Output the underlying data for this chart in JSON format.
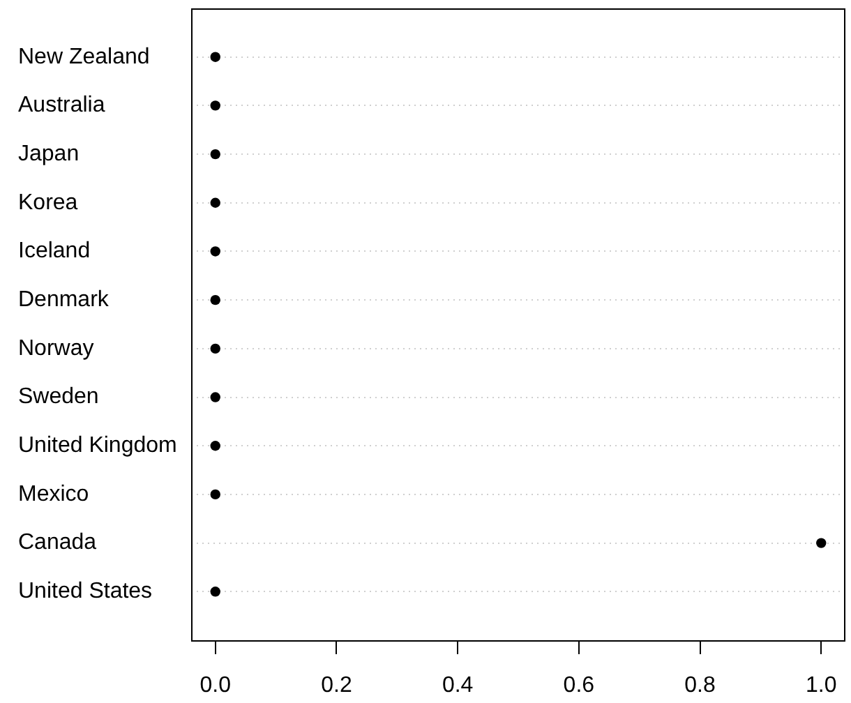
{
  "chart_data": {
    "type": "scatter",
    "orientation": "horizontal",
    "categories": [
      "New Zealand",
      "Australia",
      "Japan",
      "Korea",
      "Iceland",
      "Denmark",
      "Norway",
      "Sweden",
      "United Kingdom",
      "Mexico",
      "Canada",
      "United States"
    ],
    "values": [
      0,
      0,
      0,
      0,
      0,
      0,
      0,
      0,
      0,
      0,
      1,
      0
    ],
    "color": "#000000",
    "marker": "circle",
    "grid": "y",
    "xlim": [
      -0.04,
      1.04
    ],
    "xticks": [
      {
        "value": 0,
        "label": "0.0"
      },
      0.2,
      0.4,
      0.6,
      0.8,
      {
        "value": 1,
        "label": "1.0"
      }
    ]
  }
}
